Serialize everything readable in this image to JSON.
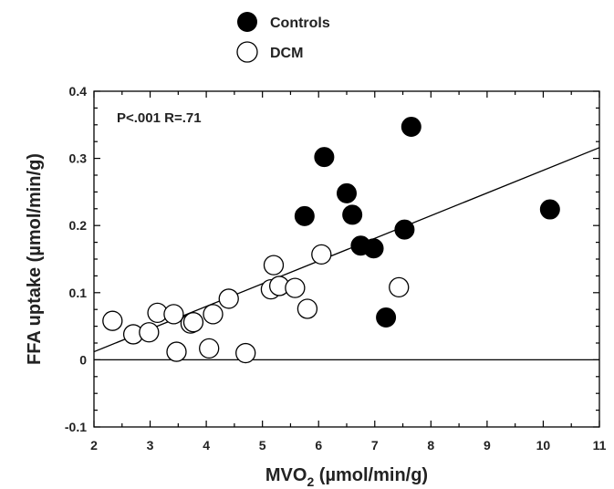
{
  "chart_data": {
    "type": "scatter",
    "xlim": [
      2,
      11
    ],
    "ylim": [
      -0.1,
      0.4
    ],
    "x_ticks": [
      2,
      3,
      4,
      5,
      6,
      7,
      8,
      9,
      10,
      11
    ],
    "y_ticks": [
      -0.1,
      0,
      0.1,
      0.2,
      0.3,
      0.4
    ],
    "x_tick_labels": [
      "2",
      "3",
      "4",
      "5",
      "6",
      "7",
      "8",
      "9",
      "10",
      "11"
    ],
    "y_tick_labels": [
      "-0.1",
      "0",
      "0.1",
      "0.2",
      "0.3",
      "0.4"
    ],
    "xlabel": {
      "main": "MVO",
      "sub": "2",
      "rest": " (µmol/min/g)"
    },
    "ylabel": "FFA uptake (µmol/min/g)",
    "annotation": "P<.001  R=.71",
    "legend": {
      "position": "top-center",
      "entries": [
        "Controls",
        "DCM"
      ]
    },
    "grid": false,
    "zero_line": true,
    "regression_line": {
      "x": [
        2,
        11
      ],
      "y": [
        0.012,
        0.316
      ]
    },
    "series": [
      {
        "name": "Controls",
        "marker": "filled-circle",
        "color": "#000000",
        "points": [
          [
            5.75,
            0.214
          ],
          [
            6.1,
            0.302
          ],
          [
            6.5,
            0.248
          ],
          [
            6.6,
            0.216
          ],
          [
            6.75,
            0.17
          ],
          [
            6.98,
            0.166
          ],
          [
            7.2,
            0.063
          ],
          [
            7.53,
            0.194
          ],
          [
            7.65,
            0.347
          ],
          [
            10.12,
            0.224
          ]
        ]
      },
      {
        "name": "DCM",
        "marker": "open-circle",
        "color": "#000000",
        "points": [
          [
            2.33,
            0.058
          ],
          [
            2.7,
            0.038
          ],
          [
            2.98,
            0.041
          ],
          [
            3.13,
            0.07
          ],
          [
            3.42,
            0.068
          ],
          [
            3.47,
            0.012
          ],
          [
            3.72,
            0.054
          ],
          [
            3.77,
            0.056
          ],
          [
            4.05,
            0.017
          ],
          [
            4.12,
            0.068
          ],
          [
            4.4,
            0.091
          ],
          [
            4.7,
            0.01
          ],
          [
            5.15,
            0.105
          ],
          [
            5.2,
            0.141
          ],
          [
            5.3,
            0.11
          ],
          [
            5.58,
            0.107
          ],
          [
            5.8,
            0.076
          ],
          [
            6.05,
            0.157
          ],
          [
            7.43,
            0.108
          ]
        ]
      }
    ]
  }
}
